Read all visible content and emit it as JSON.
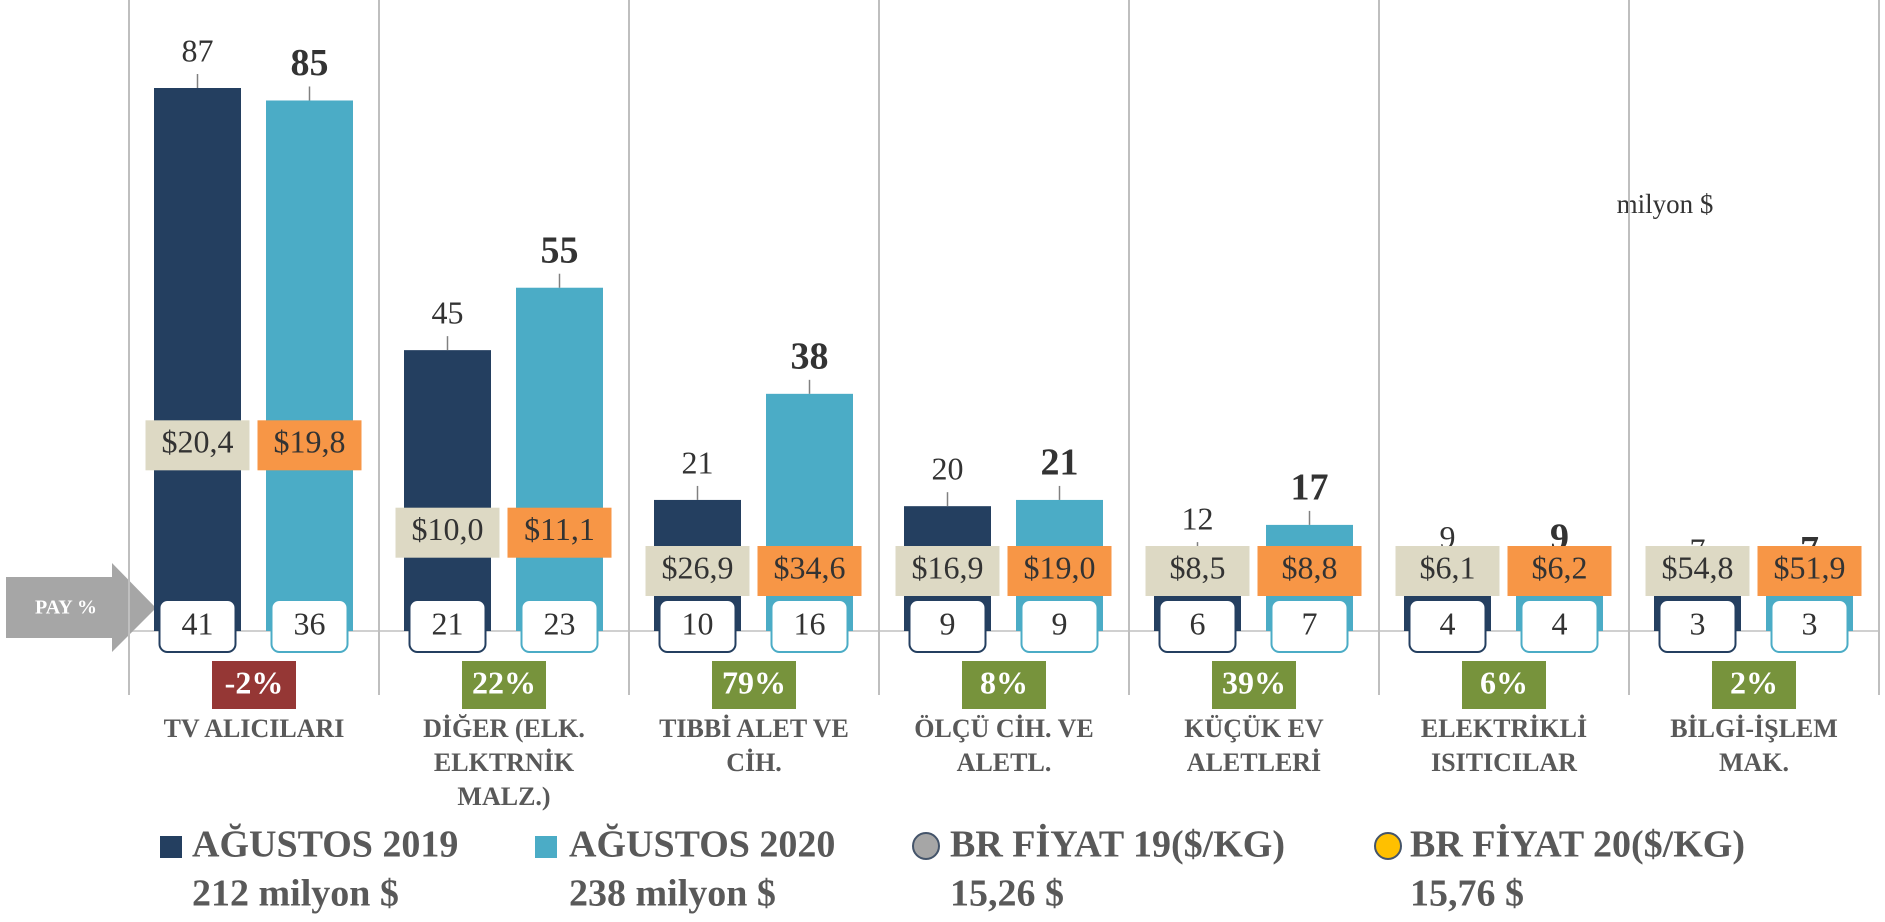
{
  "chart_data": {
    "type": "bar",
    "categories": [
      [
        "TV ALICILARI"
      ],
      [
        "DİĞER (ELK.",
        "ELKTRNİK",
        "MALZ.)"
      ],
      [
        "TIBBİ ALET VE",
        "CİH."
      ],
      [
        "ÖLÇÜ CİH. VE",
        "ALETL."
      ],
      [
        "KÜÇÜK EV",
        "ALETLERİ"
      ],
      [
        "ELEKTRİKLİ",
        "ISITICILAR"
      ],
      [
        "BİLGİ-İŞLEM",
        "MAK."
      ]
    ],
    "unit_label": "milyon $",
    "share_label": "PAY %",
    "series": [
      {
        "name": "AĞUSTOS 2019",
        "total_label": "212 milyon $",
        "color": "#243f60",
        "values": [
          87,
          45,
          21,
          20,
          12,
          9,
          7
        ],
        "shares": [
          41,
          21,
          10,
          9,
          6,
          4,
          3
        ]
      },
      {
        "name": "AĞUSTOS 2020",
        "total_label": "238 milyon $",
        "color": "#4bacc6",
        "values": [
          85,
          55,
          38,
          21,
          17,
          9,
          7
        ],
        "shares": [
          36,
          23,
          16,
          9,
          7,
          4,
          3
        ]
      }
    ],
    "price_series": [
      {
        "name": "BR FİYAT 19($/KG)",
        "total_label": "15,26 $",
        "color": "#a6a6a6",
        "label_color": "#ddd9c4",
        "values": [
          20.4,
          10.0,
          26.9,
          16.9,
          8.5,
          6.1,
          54.8
        ],
        "value_labels": [
          "$20,4",
          "$10,0",
          "$26,9",
          "$16,9",
          "$8,5",
          "$6,1",
          "$54,8"
        ]
      },
      {
        "name": "BR FİYAT 20($/KG)",
        "total_label": "15,76 $",
        "color": "#ffc000",
        "label_color": "#f79646",
        "values": [
          19.8,
          11.1,
          34.6,
          19.0,
          8.8,
          6.2,
          51.9
        ],
        "value_labels": [
          "$19,8",
          "$11,1",
          "$34,6",
          "$19,0",
          "$8,8",
          "$6,2",
          "$51,9"
        ]
      }
    ],
    "change": {
      "values": [
        -2,
        22,
        79,
        8,
        39,
        6,
        2
      ],
      "value_labels": [
        "-2%",
        "22%",
        "79%",
        "8%",
        "39%",
        "6%",
        "2%"
      ],
      "positive_color": "#77933c",
      "negative_color": "#953735"
    }
  }
}
